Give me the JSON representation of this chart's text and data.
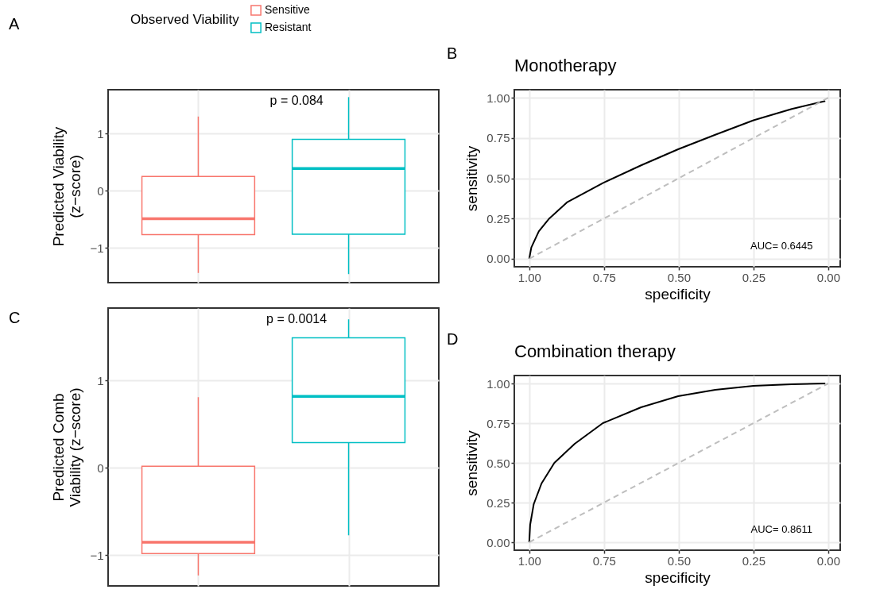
{
  "chart_data": [
    {
      "type": "box",
      "categories": [
        null,
        null
      ],
      "ylabel": "Predicted Viability\n(z−score)",
      "legend_title": "Observed Viability",
      "legend": "top",
      "grid": true,
      "tick_labels": "y",
      "ylim": [
        -1.61,
        1.77
      ],
      "yticks": [
        -1,
        0,
        1
      ],
      "series": [
        {
          "name": "Sensitive",
          "color": "#f8766d",
          "boxes": [
            {
              "low": -1.44,
              "q1": -0.77,
              "median": -0.49,
              "q3": 0.25,
              "high": 1.3
            },
            null
          ]
        },
        {
          "name": "Resistant",
          "color": "#00bfc4",
          "boxes": [
            null,
            {
              "low": -1.46,
              "q1": -0.76,
              "median": 0.39,
              "q3": 0.9,
              "high": 1.64
            }
          ]
        }
      ],
      "annotations": [
        "A",
        "p = 0.084"
      ]
    },
    {
      "type": "line",
      "title": "Monotherapy",
      "xlabel": "specificity",
      "ylabel": "sensitivity",
      "grid": true,
      "xlim": [
        1.05,
        -0.04
      ],
      "xticks": [
        {
          "value": 1,
          "label": "1.00"
        },
        {
          "value": 0.75,
          "label": "0.75"
        },
        {
          "value": 0.5,
          "label": "0.50"
        },
        {
          "value": 0.25,
          "label": "0.25"
        },
        {
          "value": 0,
          "label": "0.00"
        }
      ],
      "ylim": [
        -0.05,
        1.05
      ],
      "yticks": [
        {
          "value": 0,
          "label": "0.00"
        },
        0.25,
        {
          "value": 0.5,
          "label": "0.50"
        },
        0.75,
        {
          "value": 1,
          "label": "1.00"
        }
      ],
      "series": [
        {
          "color": "#000000",
          "x": [
            1,
            0.993,
            0.968,
            0.933,
            0.874,
            0.754,
            0.626,
            0.502,
            0.378,
            0.25,
            0.122,
            0.01
          ],
          "values": [
            0,
            0.07,
            0.17,
            0.25,
            0.35,
            0.47,
            0.58,
            0.68,
            0.77,
            0.86,
            0.93,
            0.98
          ]
        },
        {
          "color": "#bebebe",
          "line_style": "dashed",
          "x": [
            1,
            0
          ],
          "values": [
            0,
            1
          ]
        }
      ],
      "annotations": [
        "B",
        "AUC= 0.6445"
      ]
    },
    {
      "type": "box",
      "categories": [
        null,
        null
      ],
      "ylabel": "Predicted Comb\nViability (z−score)",
      "grid": true,
      "tick_labels": "y",
      "ylim": [
        -1.35,
        1.83
      ],
      "yticks": [
        -1,
        0,
        1
      ],
      "series": [
        {
          "name": "Sensitive",
          "color": "#f8766d",
          "boxes": [
            {
              "low": -1.23,
              "q1": -0.98,
              "median": -0.85,
              "q3": 0.02,
              "high": 0.81
            },
            null
          ]
        },
        {
          "name": "Resistant",
          "color": "#00bfc4",
          "boxes": [
            null,
            {
              "low": -0.77,
              "q1": 0.29,
              "median": 0.82,
              "q3": 1.49,
              "high": 1.7
            }
          ]
        }
      ],
      "annotations": [
        "C",
        "p = 0.0014"
      ]
    },
    {
      "type": "line",
      "title": "Combination therapy",
      "xlabel": "specificity",
      "ylabel": "sensitivity",
      "grid": true,
      "xlim": [
        1.05,
        -0.04
      ],
      "xticks": [
        {
          "value": 1,
          "label": "1.00"
        },
        {
          "value": 0.75,
          "label": "0.75"
        },
        {
          "value": 0.5,
          "label": "0.50"
        },
        {
          "value": 0.25,
          "label": "0.25"
        },
        {
          "value": 0,
          "label": "0.00"
        }
      ],
      "ylim": [
        -0.05,
        1.05
      ],
      "yticks": [
        {
          "value": 0,
          "label": "0.00"
        },
        0.25,
        {
          "value": 0.5,
          "label": "0.50"
        },
        0.75,
        {
          "value": 1,
          "label": "1.00"
        }
      ],
      "series": [
        {
          "color": "#000000",
          "x": [
            1,
            0.997,
            0.985,
            0.959,
            0.916,
            0.848,
            0.754,
            0.626,
            0.502,
            0.378,
            0.25,
            0.122,
            0.01
          ],
          "values": [
            0,
            0.11,
            0.24,
            0.37,
            0.5,
            0.62,
            0.75,
            0.85,
            0.92,
            0.96,
            0.985,
            0.995,
            1
          ]
        },
        {
          "color": "#bebebe",
          "line_style": "dashed",
          "x": [
            1,
            0
          ],
          "values": [
            0,
            1
          ]
        }
      ],
      "annotations": [
        "D",
        "AUC= 0.8611"
      ]
    }
  ]
}
